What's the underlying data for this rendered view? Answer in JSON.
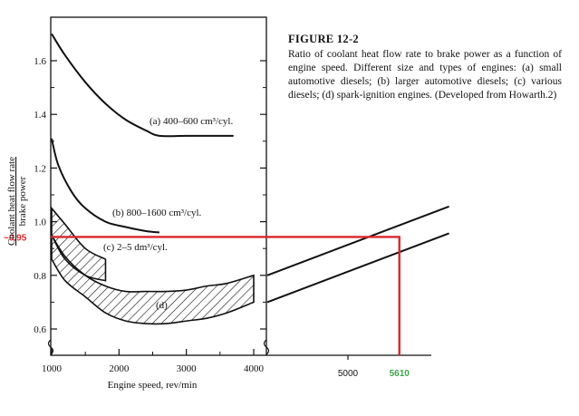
{
  "figure": {
    "title": "FIGURE 12-2",
    "caption": "Ratio of coolant heat flow rate to brake power as a function of engine speed. Different size and types of engines: (a) small automotive diesels; (b) larger automotive diesels; (c) various diesels; (d) spark-ignition engines. (Developed from Howarth.2)"
  },
  "chart_data": {
    "type": "line",
    "xlabel": "Engine speed, rev/min",
    "ylabel_top": "Coolant heat flow rate",
    "ylabel_bottom": "brake power",
    "xlim": [
      1000,
      4000
    ],
    "ylim": [
      0.55,
      1.72
    ],
    "x_ticks": [
      "1000",
      "2000",
      "3000",
      "4000"
    ],
    "y_ticks": [
      "0.6",
      "0.8",
      "1.0",
      "1.2",
      "1.4",
      "1.6"
    ],
    "grid": false,
    "series": [
      {
        "name": "(a) 400–600 cm³/cyl.",
        "x": [
          1000,
          1200,
          1500,
          1800,
          2100,
          2400,
          2600,
          3000,
          3500,
          3700
        ],
        "y": [
          1.7,
          1.62,
          1.52,
          1.44,
          1.38,
          1.34,
          1.32,
          1.32,
          1.32,
          1.32
        ]
      },
      {
        "name": "(b) 800–1600 cm³/cyl.",
        "x": [
          1000,
          1100,
          1300,
          1500,
          1800,
          2100,
          2400,
          2600
        ],
        "y": [
          1.31,
          1.21,
          1.11,
          1.05,
          1.0,
          0.98,
          0.965,
          0.96
        ]
      },
      {
        "name": "(c) 2–5 dm³/cyl.",
        "type": "band",
        "x": [
          1000,
          1200,
          1500,
          1800
        ],
        "upper": [
          1.05,
          0.99,
          0.9,
          0.86
        ],
        "lower": [
          0.95,
          0.86,
          0.8,
          0.78
        ]
      },
      {
        "name": "(d)",
        "type": "band",
        "x": [
          1000,
          1200,
          1500,
          1800,
          2100,
          2400,
          2700,
          3000,
          3300,
          3600,
          4000
        ],
        "upper": [
          0.95,
          0.87,
          0.8,
          0.76,
          0.74,
          0.74,
          0.74,
          0.745,
          0.76,
          0.77,
          0.8
        ],
        "lower": [
          0.86,
          0.78,
          0.72,
          0.66,
          0.63,
          0.62,
          0.62,
          0.63,
          0.64,
          0.66,
          0.7
        ]
      }
    ],
    "extension": {
      "x_ticks": [
        "5000"
      ],
      "upper_line": {
        "x": [
          4000,
          6200
        ],
        "y": [
          0.8,
          1.05
        ]
      },
      "lower_line": {
        "x": [
          4000,
          6200
        ],
        "y": [
          0.7,
          0.95
        ]
      }
    },
    "annotation": {
      "y_label": "~0.95",
      "y_value": 0.95,
      "x_label": "5610",
      "x_value": 5610,
      "colors": {
        "y_marker": "#d8272c",
        "x_marker": "#3aa64a"
      }
    }
  }
}
